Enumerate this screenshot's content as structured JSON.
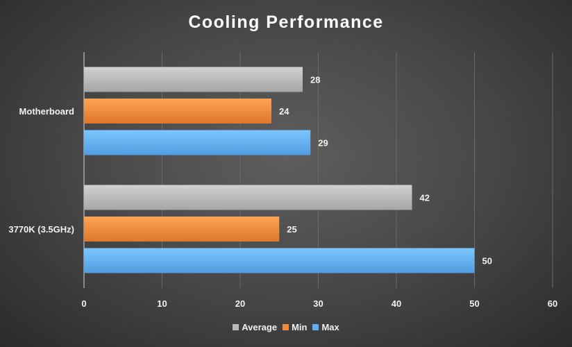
{
  "chart_data": {
    "type": "bar",
    "orientation": "horizontal",
    "title": "Cooling Performance",
    "xlabel": "",
    "ylabel": "",
    "categories": [
      "Motherboard",
      "3770K (3.5GHz)"
    ],
    "series": [
      {
        "name": "Average",
        "values": [
          28,
          42
        ],
        "color": "#b8b8b8"
      },
      {
        "name": "Min",
        "values": [
          24,
          25
        ],
        "color": "#f08a3c"
      },
      {
        "name": "Max",
        "values": [
          29,
          50
        ],
        "color": "#63aef0"
      }
    ],
    "xlim": [
      0,
      60
    ],
    "xticks": [
      0,
      10,
      20,
      30,
      40,
      50,
      60
    ],
    "grid": true,
    "legend_position": "bottom",
    "data_labels": true
  }
}
